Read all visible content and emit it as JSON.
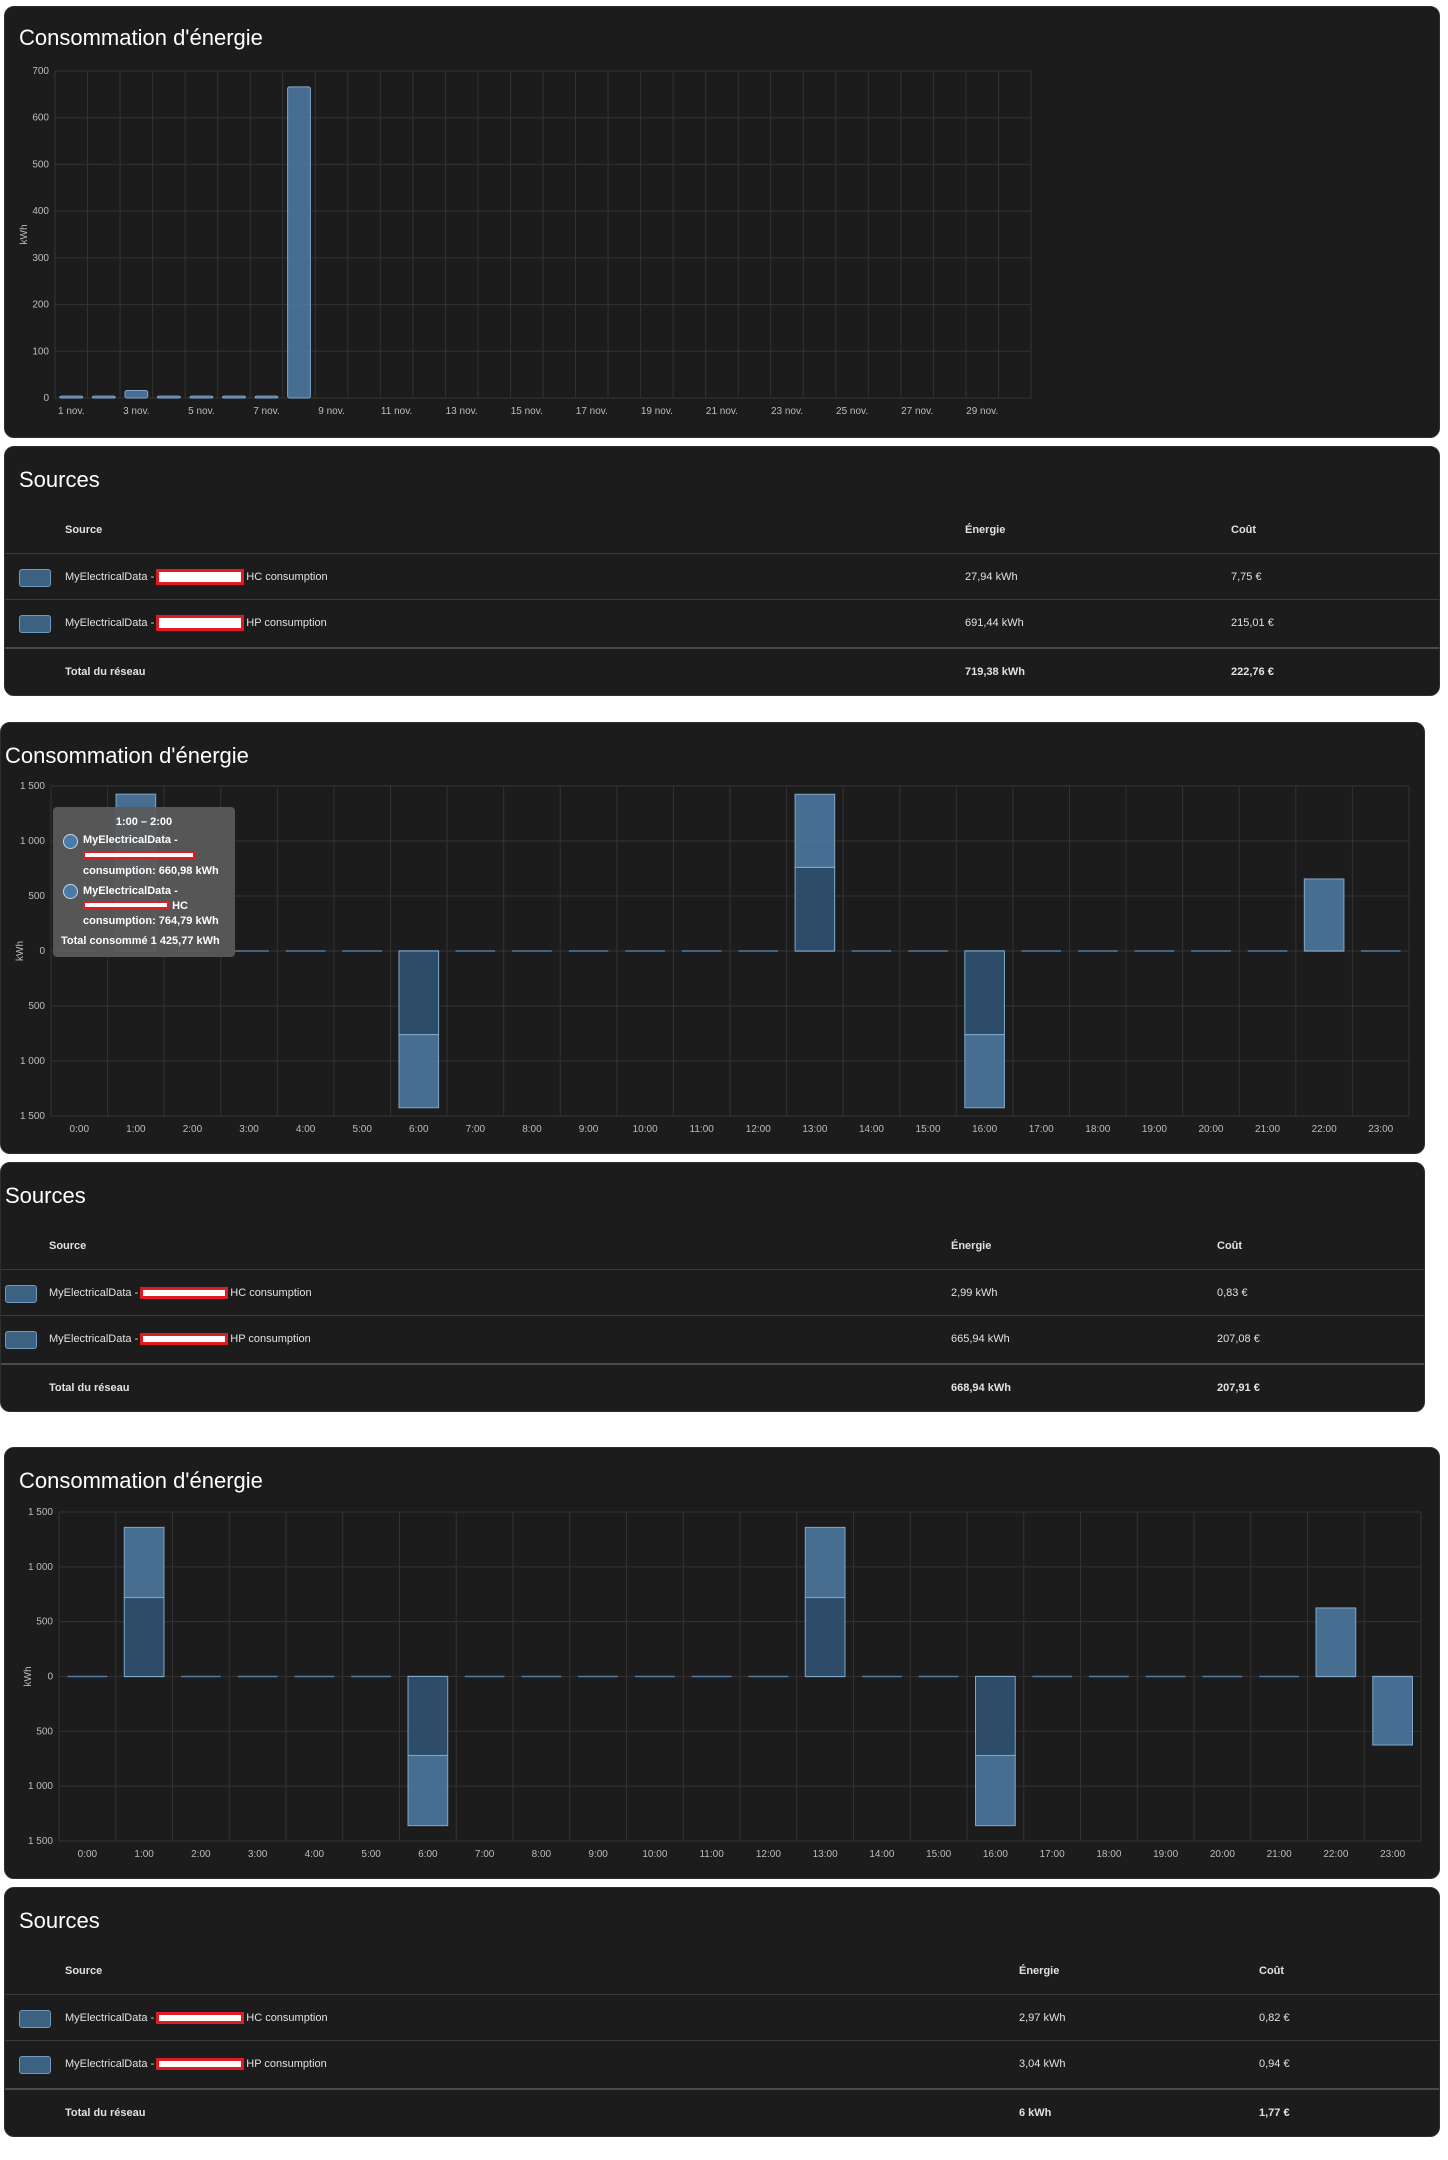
{
  "panels": [
    {
      "title": "Consommation d'énergie",
      "sources": {
        "title": "Sources",
        "headers": {
          "source": "Source",
          "energy": "Énergie",
          "cost": "Coût"
        },
        "rows": [
          {
            "prefix": "MyElectricalData -",
            "suffix": "HC consumption",
            "energy": "27,94 kWh",
            "cost": "7,75 €"
          },
          {
            "prefix": "MyElectricalData -",
            "suffix": "HP consumption",
            "energy": "691,44 kWh",
            "cost": "215,01 €"
          }
        ],
        "total": {
          "label": "Total du réseau",
          "energy": "719,38 kWh",
          "cost": "222,76 €"
        }
      }
    },
    {
      "title": "Consommation d'énergie",
      "tooltip": {
        "header": "1:00 – 2:00",
        "entry1_name": "MyElectricalData -",
        "entry1_value": "consumption: 660,98 kWh",
        "entry2_name": "MyElectricalData -",
        "entry2_tag": "HC",
        "entry2_value": "consumption: 764,79 kWh",
        "total": "Total consommé 1 425,77 kWh"
      },
      "sources": {
        "title": "Sources",
        "headers": {
          "source": "Source",
          "energy": "Énergie",
          "cost": "Coût"
        },
        "rows": [
          {
            "prefix": "MyElectricalData -",
            "suffix": "HC consumption",
            "energy": "2,99 kWh",
            "cost": "0,83 €"
          },
          {
            "prefix": "MyElectricalData -",
            "suffix": "HP consumption",
            "energy": "665,94 kWh",
            "cost": "207,08 €"
          }
        ],
        "total": {
          "label": "Total du réseau",
          "energy": "668,94 kWh",
          "cost": "207,91 €"
        }
      }
    },
    {
      "title": "Consommation d'énergie",
      "sources": {
        "title": "Sources",
        "headers": {
          "source": "Source",
          "energy": "Énergie",
          "cost": "Coût"
        },
        "rows": [
          {
            "prefix": "MyElectricalData -",
            "suffix": "HC consumption",
            "energy": "2,97 kWh",
            "cost": "0,82 €"
          },
          {
            "prefix": "MyElectricalData -",
            "suffix": "HP consumption",
            "energy": "3,04 kWh",
            "cost": "0,94 €"
          }
        ],
        "total": {
          "label": "Total du réseau",
          "energy": "6 kWh",
          "cost": "1,77 €"
        }
      }
    }
  ],
  "colors": {
    "bar_fill": "#4f7da5",
    "bar_dark": "#2d4f6e",
    "bar_stroke": "#7fa8cc",
    "grid": "#333333",
    "card": "#1c1c1c",
    "redaction": "#e01b24"
  },
  "chart_data": [
    {
      "type": "bar",
      "ylabel": "kWh",
      "ylim": [
        0,
        700
      ],
      "yticks": [
        0,
        100,
        200,
        300,
        400,
        500,
        600,
        700
      ],
      "ytick_labels": [
        "0",
        "100",
        "200",
        "300",
        "400",
        "500",
        "600",
        "700"
      ],
      "categories": [
        "1 nov.",
        "2 nov.",
        "3 nov.",
        "4 nov.",
        "5 nov.",
        "6 nov.",
        "7 nov.",
        "8 nov.",
        "9 nov.",
        "10 nov.",
        "11 nov.",
        "12 nov.",
        "13 nov.",
        "14 nov.",
        "15 nov.",
        "16 nov.",
        "17 nov.",
        "18 nov.",
        "19 nov.",
        "20 nov.",
        "21 nov.",
        "22 nov.",
        "23 nov.",
        "24 nov.",
        "25 nov.",
        "26 nov.",
        "27 nov.",
        "28 nov.",
        "29 nov.",
        "30 nov."
      ],
      "tick_labels": [
        "1 nov.",
        "",
        "3 nov.",
        "",
        "5 nov.",
        "",
        "7 nov.",
        "",
        "9 nov.",
        "",
        "11 nov.",
        "",
        "13 nov.",
        "",
        "15 nov.",
        "",
        "17 nov.",
        "",
        "19 nov.",
        "",
        "21 nov.",
        "",
        "23 nov.",
        "",
        "25 nov.",
        "",
        "27 nov.",
        "",
        "29 nov.",
        ""
      ],
      "values": [
        4,
        4,
        16,
        4,
        4,
        4,
        4,
        666,
        0,
        0,
        0,
        0,
        0,
        0,
        0,
        0,
        0,
        0,
        0,
        0,
        0,
        0,
        0,
        0,
        0,
        0,
        0,
        0,
        0,
        0
      ],
      "grid": true
    },
    {
      "type": "bar",
      "ylabel": "kWh",
      "ylim": [
        -1500,
        1500
      ],
      "yticks": [
        -1500,
        -1000,
        -500,
        0,
        500,
        1000,
        1500
      ],
      "ytick_labels": [
        "1 500",
        "1 000",
        "500",
        "0",
        "500",
        "1 000",
        "1 500"
      ],
      "categories": [
        "0:00",
        "1:00",
        "2:00",
        "3:00",
        "4:00",
        "5:00",
        "6:00",
        "7:00",
        "8:00",
        "9:00",
        "10:00",
        "11:00",
        "12:00",
        "13:00",
        "14:00",
        "15:00",
        "16:00",
        "17:00",
        "18:00",
        "19:00",
        "20:00",
        "21:00",
        "22:00",
        "23:00"
      ],
      "series": [
        {
          "values": [
            0,
            765,
            0,
            0,
            0,
            0,
            -760,
            0,
            0,
            0,
            0,
            0,
            0,
            760,
            0,
            0,
            -760,
            0,
            0,
            0,
            0,
            0,
            0,
            0
          ]
        },
        {
          "values": [
            0,
            661,
            0,
            0,
            0,
            0,
            -665,
            0,
            0,
            0,
            0,
            0,
            0,
            665,
            0,
            0,
            -665,
            0,
            0,
            0,
            0,
            0,
            655,
            0
          ]
        }
      ],
      "grid": true
    },
    {
      "type": "bar",
      "ylabel": "kWh",
      "ylim": [
        -1500,
        1500
      ],
      "yticks": [
        -1500,
        -1000,
        -500,
        0,
        500,
        1000,
        1500
      ],
      "ytick_labels": [
        "1 500",
        "1 000",
        "500",
        "0",
        "500",
        "1 000",
        "1 500"
      ],
      "categories": [
        "0:00",
        "1:00",
        "2:00",
        "3:00",
        "4:00",
        "5:00",
        "6:00",
        "7:00",
        "8:00",
        "9:00",
        "10:00",
        "11:00",
        "12:00",
        "13:00",
        "14:00",
        "15:00",
        "16:00",
        "17:00",
        "18:00",
        "19:00",
        "20:00",
        "21:00",
        "22:00",
        "23:00"
      ],
      "series": [
        {
          "values": [
            0,
            720,
            0,
            0,
            0,
            0,
            -720,
            0,
            0,
            0,
            0,
            0,
            0,
            720,
            0,
            0,
            -720,
            0,
            0,
            0,
            0,
            0,
            0,
            0
          ]
        },
        {
          "values": [
            0,
            640,
            0,
            0,
            0,
            0,
            -640,
            0,
            0,
            0,
            0,
            0,
            0,
            640,
            0,
            0,
            -640,
            0,
            0,
            0,
            0,
            0,
            625,
            -625
          ]
        }
      ],
      "grid": true
    }
  ]
}
